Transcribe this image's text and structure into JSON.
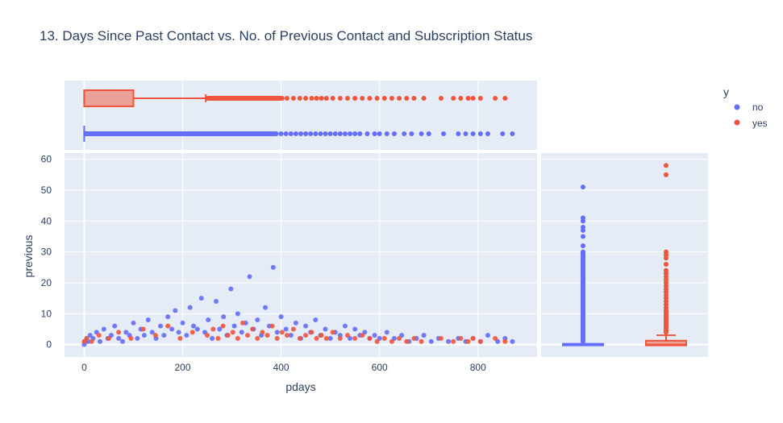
{
  "chart_data": {
    "type": "scatter",
    "title": "13. Days Since Past Contact vs. No. of Previous Contact and Subscription Status",
    "xlabel": "pdays",
    "ylabel": "previous",
    "xlim": [
      -40,
      920
    ],
    "ylim": [
      -4,
      62
    ],
    "x_ticks": [
      0,
      200,
      400,
      600,
      800
    ],
    "y_ticks": [
      0,
      10,
      20,
      30,
      40,
      50,
      60
    ],
    "legend": {
      "title": "y",
      "placement": "top-right",
      "entries": [
        {
          "name": "no",
          "color": "#636efa"
        },
        {
          "name": "yes",
          "color": "#ef553b"
        }
      ]
    },
    "series": [
      {
        "name": "no",
        "color": "#636efa",
        "points": [
          [
            0,
            0
          ],
          [
            2,
            1
          ],
          [
            5,
            2
          ],
          [
            8,
            1
          ],
          [
            12,
            3
          ],
          [
            18,
            2
          ],
          [
            25,
            4
          ],
          [
            32,
            1
          ],
          [
            40,
            5
          ],
          [
            48,
            2
          ],
          [
            55,
            3
          ],
          [
            62,
            6
          ],
          [
            70,
            2
          ],
          [
            78,
            1
          ],
          [
            85,
            4
          ],
          [
            92,
            3
          ],
          [
            100,
            7
          ],
          [
            108,
            2
          ],
          [
            115,
            5
          ],
          [
            122,
            3
          ],
          [
            130,
            8
          ],
          [
            138,
            4
          ],
          [
            146,
            2
          ],
          [
            155,
            6
          ],
          [
            162,
            3
          ],
          [
            170,
            9
          ],
          [
            178,
            5
          ],
          [
            185,
            11
          ],
          [
            192,
            4
          ],
          [
            200,
            7
          ],
          [
            208,
            3
          ],
          [
            215,
            12
          ],
          [
            222,
            6
          ],
          [
            230,
            5
          ],
          [
            238,
            15
          ],
          [
            245,
            4
          ],
          [
            252,
            8
          ],
          [
            260,
            2
          ],
          [
            268,
            14
          ],
          [
            275,
            5
          ],
          [
            283,
            9
          ],
          [
            290,
            3
          ],
          [
            298,
            18
          ],
          [
            305,
            6
          ],
          [
            312,
            10
          ],
          [
            320,
            4
          ],
          [
            328,
            7
          ],
          [
            336,
            22
          ],
          [
            344,
            5
          ],
          [
            352,
            8
          ],
          [
            360,
            3
          ],
          [
            368,
            12
          ],
          [
            376,
            6
          ],
          [
            384,
            25
          ],
          [
            392,
            4
          ],
          [
            400,
            9
          ],
          [
            410,
            5
          ],
          [
            420,
            3
          ],
          [
            430,
            7
          ],
          [
            440,
            2
          ],
          [
            450,
            6
          ],
          [
            460,
            4
          ],
          [
            470,
            8
          ],
          [
            480,
            3
          ],
          [
            490,
            5
          ],
          [
            500,
            2
          ],
          [
            510,
            4
          ],
          [
            520,
            3
          ],
          [
            530,
            6
          ],
          [
            540,
            2
          ],
          [
            550,
            5
          ],
          [
            560,
            3
          ],
          [
            570,
            4
          ],
          [
            580,
            2
          ],
          [
            590,
            3
          ],
          [
            600,
            2
          ],
          [
            615,
            4
          ],
          [
            630,
            2
          ],
          [
            645,
            3
          ],
          [
            660,
            1
          ],
          [
            675,
            2
          ],
          [
            690,
            3
          ],
          [
            705,
            1
          ],
          [
            720,
            2
          ],
          [
            740,
            1
          ],
          [
            760,
            2
          ],
          [
            775,
            1
          ],
          [
            790,
            2
          ],
          [
            805,
            1
          ],
          [
            820,
            3
          ],
          [
            840,
            1
          ],
          [
            855,
            2
          ],
          [
            870,
            1
          ]
        ]
      },
      {
        "name": "yes",
        "color": "#ef553b",
        "points": [
          [
            0,
            1
          ],
          [
            5,
            2
          ],
          [
            15,
            1
          ],
          [
            30,
            3
          ],
          [
            50,
            2
          ],
          [
            70,
            4
          ],
          [
            95,
            2
          ],
          [
            120,
            5
          ],
          [
            145,
            3
          ],
          [
            170,
            6
          ],
          [
            195,
            2
          ],
          [
            220,
            4
          ],
          [
            250,
            3
          ],
          [
            262,
            5
          ],
          [
            272,
            2
          ],
          [
            282,
            6
          ],
          [
            292,
            3
          ],
          [
            302,
            4
          ],
          [
            312,
            2
          ],
          [
            322,
            7
          ],
          [
            332,
            3
          ],
          [
            342,
            5
          ],
          [
            352,
            2
          ],
          [
            362,
            4
          ],
          [
            372,
            3
          ],
          [
            382,
            6
          ],
          [
            392,
            2
          ],
          [
            402,
            4
          ],
          [
            412,
            3
          ],
          [
            425,
            5
          ],
          [
            438,
            2
          ],
          [
            450,
            3
          ],
          [
            462,
            4
          ],
          [
            472,
            2
          ],
          [
            482,
            3
          ],
          [
            492,
            2
          ],
          [
            505,
            4
          ],
          [
            520,
            2
          ],
          [
            535,
            3
          ],
          [
            550,
            2
          ],
          [
            565,
            3
          ],
          [
            580,
            2
          ],
          [
            595,
            1
          ],
          [
            610,
            2
          ],
          [
            625,
            1
          ],
          [
            640,
            2
          ],
          [
            655,
            1
          ],
          [
            670,
            2
          ],
          [
            685,
            1
          ],
          [
            725,
            2
          ],
          [
            750,
            1
          ],
          [
            765,
            2
          ],
          [
            780,
            1
          ],
          [
            790,
            2
          ],
          [
            805,
            1
          ],
          [
            835,
            2
          ],
          [
            855,
            1
          ]
        ]
      }
    ],
    "marginal_top": {
      "type": "box",
      "axis": "pdays",
      "no": {
        "min": 0,
        "q1": 0,
        "median": 0,
        "q3": 0,
        "max": 0,
        "outliers": [
          6,
          10,
          20,
          30,
          40,
          50,
          60,
          70,
          80,
          90,
          100,
          110,
          120,
          130,
          140,
          150,
          160,
          170,
          180,
          190,
          200,
          210,
          220,
          230,
          240,
          250,
          260,
          270,
          280,
          290,
          300,
          310,
          320,
          330,
          340,
          350,
          360,
          370,
          380,
          390,
          400,
          410,
          420,
          430,
          440,
          450,
          460,
          470,
          480,
          490,
          500,
          510,
          520,
          530,
          540,
          550,
          560,
          575,
          590,
          600,
          615,
          630,
          650,
          665,
          685,
          700,
          730,
          760,
          775,
          790,
          805,
          820,
          850,
          870
        ]
      },
      "yes": {
        "min": 0,
        "q1": 0,
        "median": 0,
        "q3": 100,
        "max": 247,
        "outliers": [
          252,
          262,
          272,
          282,
          292,
          302,
          312,
          322,
          332,
          342,
          352,
          362,
          372,
          382,
          392,
          402,
          412,
          425,
          438,
          450,
          462,
          472,
          482,
          492,
          505,
          520,
          535,
          550,
          565,
          580,
          595,
          610,
          625,
          640,
          655,
          670,
          690,
          725,
          750,
          765,
          780,
          790,
          805,
          835,
          855
        ]
      }
    },
    "marginal_right": {
      "type": "box",
      "axis": "previous",
      "no": {
        "min": 0,
        "q1": 0,
        "median": 0,
        "q3": 0,
        "max": 0,
        "outliers": [
          1,
          1.5,
          2,
          2.5,
          3,
          3.5,
          4,
          4.5,
          5,
          5.5,
          6,
          6.5,
          7,
          7.5,
          8,
          8.5,
          9,
          9.5,
          10,
          10.5,
          11,
          11.5,
          12,
          12.5,
          13,
          13.5,
          14,
          14.5,
          15,
          15.5,
          16,
          16.5,
          17,
          17.5,
          18,
          18.5,
          19,
          19.5,
          20,
          20.5,
          21,
          21.5,
          22,
          22.5,
          23,
          23.5,
          24,
          24.5,
          25,
          25.5,
          26,
          26.5,
          27,
          27.5,
          28,
          28.5,
          29,
          29.5,
          30,
          32,
          35,
          37,
          38,
          40,
          41,
          51
        ]
      },
      "yes": {
        "min": 0,
        "q1": 0,
        "median": 0,
        "q3": 1,
        "max": 3,
        "outliers": [
          4,
          4.5,
          5,
          5.5,
          6,
          6.5,
          7,
          7.5,
          8,
          8.5,
          9,
          9.5,
          10,
          10.5,
          11,
          12,
          13,
          14,
          15,
          16,
          17,
          18,
          19,
          20,
          21,
          22,
          23,
          24,
          26,
          28,
          29,
          30,
          55,
          58
        ]
      }
    }
  }
}
